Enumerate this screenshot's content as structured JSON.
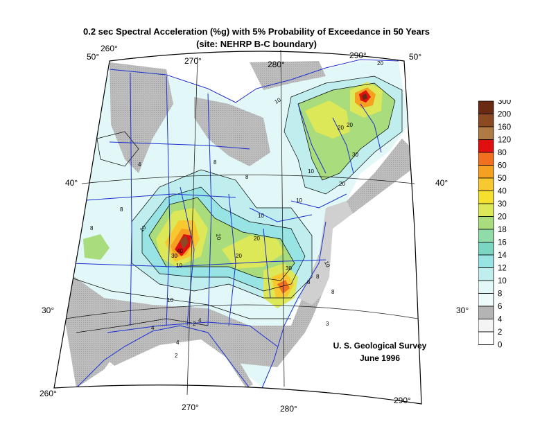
{
  "title": {
    "line1": "0.2 sec Spectral Acceleration (%g) with 5% Probability of Exceedance in 50 Years",
    "line2": "(site: NEHRP B-C boundary)"
  },
  "credit": {
    "line1": "U. S. Geological Survey",
    "line2": "June 1996"
  },
  "graticule": {
    "top": [
      "260°",
      "270°",
      "280°",
      "290°"
    ],
    "bottom": [
      "260°",
      "270°",
      "280°",
      "290°"
    ],
    "left": [
      "50°",
      "40°",
      "30°"
    ],
    "right": [
      "50°",
      "40°",
      "30°"
    ]
  },
  "contour_labels": [
    "10",
    "20",
    "4",
    "8",
    "8",
    "8",
    "10",
    "10",
    "10",
    "20",
    "20",
    "20",
    "30",
    "20",
    "10",
    "8",
    "8",
    "8",
    "10",
    "10",
    "4",
    "4",
    "2",
    "2",
    "4",
    "8",
    "20",
    "30",
    "30",
    "40",
    "10",
    "20",
    "3"
  ],
  "legend": {
    "values": [
      "300",
      "200",
      "160",
      "120",
      "80",
      "60",
      "50",
      "40",
      "30",
      "20",
      "18",
      "16",
      "14",
      "12",
      "10",
      "8",
      "6",
      "4",
      "2",
      "0"
    ],
    "colors": [
      "#6b2b12",
      "#8c4a22",
      "#b07a45",
      "#e01010",
      "#f07020",
      "#f5a020",
      "#f7c830",
      "#f5e030",
      "#dde858",
      "#a8dc7c",
      "#90dca8",
      "#7ad6c0",
      "#98e4e4",
      "#c0eeee",
      "#e2f8f8",
      "#eefafa",
      "#b4b4b4",
      "#f4f4f4",
      "#ffffff"
    ]
  }
}
